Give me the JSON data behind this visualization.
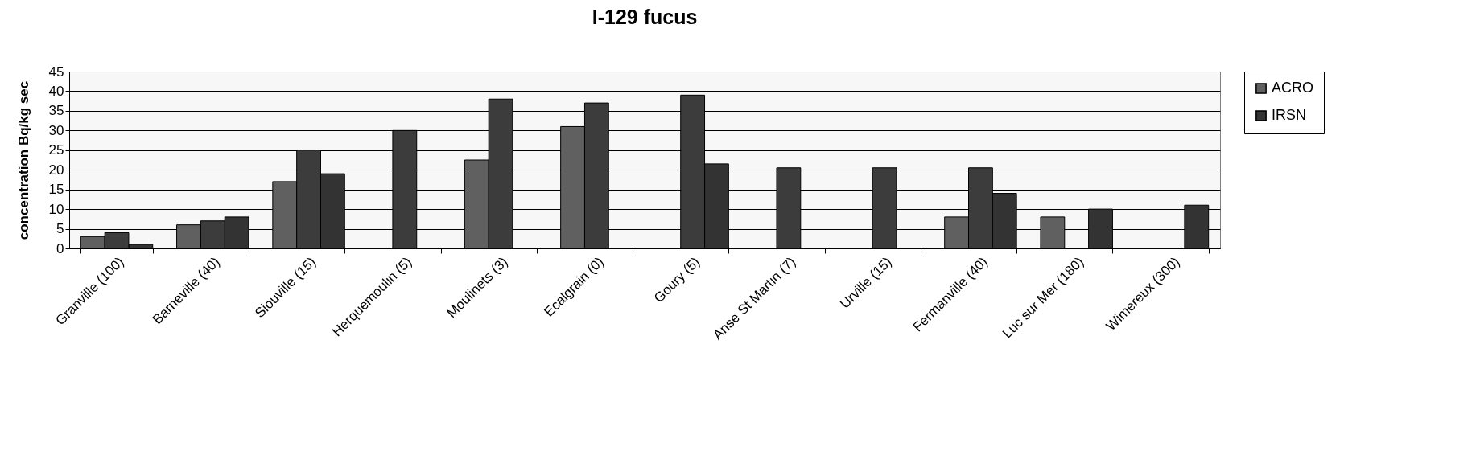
{
  "chart_data": {
    "type": "bar",
    "title": "I-129 fucus",
    "ylabel": "concentration Bq/kg sec",
    "categories": [
      "Granville (100)",
      "Barneville (40)",
      "Siouville (15)",
      "Herquemoulin (5)",
      "Moulinets (3)",
      "Ecalgrain (0)",
      "Goury (5)",
      "Anse St Martin (7)",
      "Urville (15)",
      "Fermanville (40)",
      "Luc sur Mer (180)",
      "Wimereux (300)"
    ],
    "series": [
      {
        "name": "ACRO",
        "color": "#606060",
        "values": [
          3,
          6,
          17,
          null,
          22.5,
          31,
          null,
          null,
          null,
          8,
          8,
          null
        ]
      },
      {
        "color": "#3c3c3c",
        "values": [
          4,
          7,
          25,
          30,
          38,
          37,
          39,
          20.5,
          20.5,
          20.5,
          null,
          null
        ]
      },
      {
        "name": "IRSN",
        "color": "#333333",
        "values": [
          1,
          8,
          19,
          null,
          null,
          null,
          21.5,
          null,
          null,
          14,
          10,
          11
        ]
      }
    ],
    "ylim": [
      0,
      45
    ],
    "yticks": [
      0,
      5,
      10,
      15,
      20,
      25,
      30,
      35,
      40,
      45
    ],
    "grid": "y",
    "legend": "right"
  }
}
